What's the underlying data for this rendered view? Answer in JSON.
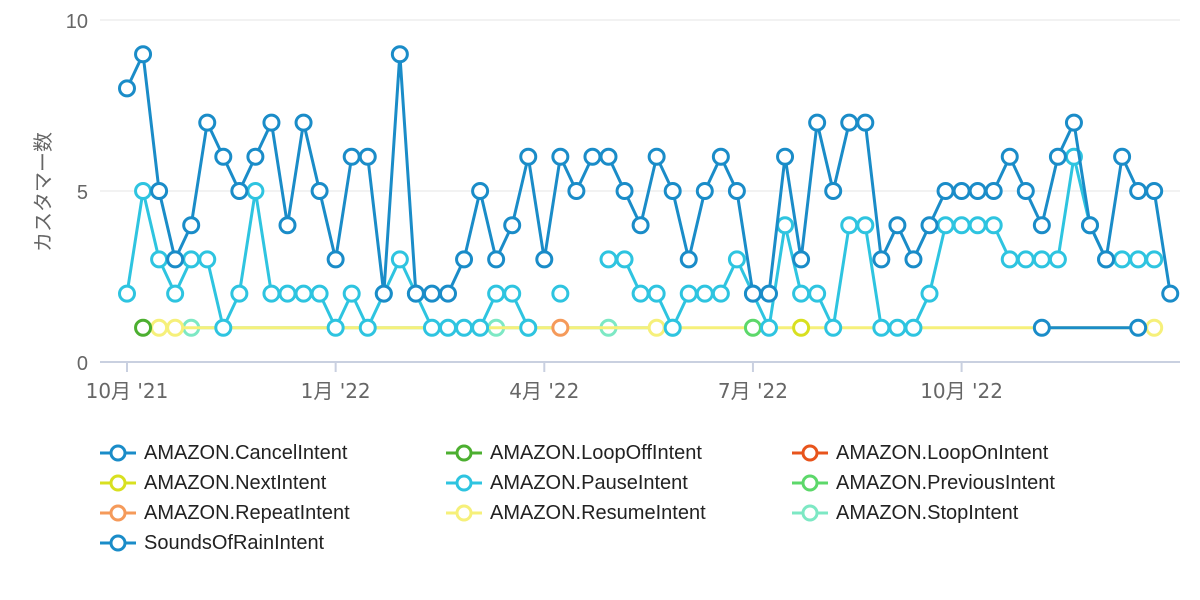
{
  "chart_data": {
    "type": "line",
    "ylabel": "カスタマー数",
    "ylim": [
      0,
      10
    ],
    "yticks": [
      0,
      5,
      10
    ],
    "x_count": 67,
    "x_ticks": [
      {
        "index": 0,
        "label": "10月 '21"
      },
      {
        "index": 13,
        "label": "1月 '22"
      },
      {
        "index": 26,
        "label": "4月 '22"
      },
      {
        "index": 39,
        "label": "7月 '22"
      },
      {
        "index": 52,
        "label": "10月 '22"
      }
    ],
    "grid": true,
    "legend_position": "bottom",
    "series": [
      {
        "name": "AMAZON.CancelIntent",
        "color": "#1a8cc8",
        "points": [
          [
            57,
            1
          ],
          [
            63,
            1
          ]
        ]
      },
      {
        "name": "AMAZON.LoopOffIntent",
        "color": "#4caf30",
        "points": [
          [
            1,
            1
          ]
        ]
      },
      {
        "name": "AMAZON.LoopOnIntent",
        "color": "#e8541c",
        "points": []
      },
      {
        "name": "AMAZON.NextIntent",
        "color": "#d8e020",
        "points": [
          [
            42,
            1
          ]
        ]
      },
      {
        "name": "AMAZON.PauseIntent",
        "color": "#2ec4e0",
        "points": [
          [
            0,
            2
          ],
          [
            1,
            5
          ],
          [
            2,
            3
          ],
          [
            3,
            2
          ],
          [
            4,
            3
          ],
          [
            5,
            3
          ],
          [
            6,
            1
          ],
          [
            7,
            2
          ],
          [
            8,
            5
          ],
          [
            9,
            2
          ],
          [
            10,
            2
          ],
          [
            11,
            2
          ],
          [
            12,
            2
          ],
          [
            13,
            1
          ],
          [
            14,
            2
          ],
          [
            15,
            1
          ],
          [
            16,
            2
          ],
          [
            17,
            3
          ],
          [
            18,
            2
          ],
          [
            19,
            1
          ],
          [
            20,
            1
          ],
          [
            21,
            1
          ],
          [
            22,
            1
          ],
          [
            23,
            2
          ],
          [
            24,
            2
          ],
          [
            25,
            1
          ],
          [
            null,
            null
          ],
          [
            27,
            2
          ],
          [
            null,
            null
          ],
          [
            30,
            3
          ],
          [
            31,
            3
          ],
          [
            32,
            2
          ],
          [
            33,
            2
          ],
          [
            34,
            1
          ],
          [
            35,
            2
          ],
          [
            36,
            2
          ],
          [
            37,
            2
          ],
          [
            38,
            3
          ],
          [
            39,
            2
          ],
          [
            40,
            1
          ],
          [
            41,
            4
          ],
          [
            42,
            2
          ],
          [
            43,
            2
          ],
          [
            44,
            1
          ],
          [
            45,
            4
          ],
          [
            46,
            4
          ],
          [
            47,
            1
          ],
          [
            48,
            1
          ],
          [
            49,
            1
          ],
          [
            50,
            2
          ],
          [
            51,
            4
          ],
          [
            52,
            4
          ],
          [
            53,
            4
          ],
          [
            54,
            4
          ],
          [
            55,
            3
          ],
          [
            56,
            3
          ],
          [
            57,
            3
          ],
          [
            58,
            3
          ],
          [
            59,
            6
          ],
          [
            60,
            4
          ],
          [
            61,
            3
          ],
          [
            62,
            3
          ],
          [
            63,
            3
          ],
          [
            64,
            3
          ]
        ]
      },
      {
        "name": "AMAZON.PreviousIntent",
        "color": "#5cd86a",
        "points": [
          [
            39,
            1
          ]
        ]
      },
      {
        "name": "AMAZON.RepeatIntent",
        "color": "#f59a5a",
        "points": [
          [
            27,
            1
          ]
        ]
      },
      {
        "name": "AMAZON.ResumeIntent",
        "color": "#f6f07a",
        "points": [
          [
            2,
            1
          ],
          [
            3,
            1
          ],
          [
            33,
            1
          ],
          [
            64,
            1
          ]
        ]
      },
      {
        "name": "AMAZON.StopIntent",
        "color": "#7de8c4",
        "points": [
          [
            4,
            1
          ],
          [
            23,
            1
          ],
          [
            25,
            1
          ],
          [
            30,
            1
          ],
          [
            34,
            1
          ]
        ]
      },
      {
        "name": "SoundsOfRainIntent",
        "color": "#1a8cc8",
        "points": [
          [
            0,
            8
          ],
          [
            1,
            9
          ],
          [
            2,
            5
          ],
          [
            3,
            3
          ],
          [
            4,
            4
          ],
          [
            5,
            7
          ],
          [
            6,
            6
          ],
          [
            7,
            5
          ],
          [
            8,
            6
          ],
          [
            9,
            7
          ],
          [
            10,
            4
          ],
          [
            11,
            7
          ],
          [
            12,
            5
          ],
          [
            13,
            3
          ],
          [
            14,
            6
          ],
          [
            15,
            6
          ],
          [
            16,
            2
          ],
          [
            17,
            9
          ],
          [
            18,
            2
          ],
          [
            19,
            2
          ],
          [
            20,
            2
          ],
          [
            21,
            3
          ],
          [
            22,
            5
          ],
          [
            23,
            3
          ],
          [
            24,
            4
          ],
          [
            25,
            6
          ],
          [
            26,
            3
          ],
          [
            27,
            6
          ],
          [
            28,
            5
          ],
          [
            29,
            6
          ],
          [
            30,
            6
          ],
          [
            31,
            5
          ],
          [
            32,
            4
          ],
          [
            33,
            6
          ],
          [
            34,
            5
          ],
          [
            35,
            3
          ],
          [
            36,
            5
          ],
          [
            37,
            6
          ],
          [
            38,
            5
          ],
          [
            39,
            2
          ],
          [
            40,
            2
          ],
          [
            41,
            6
          ],
          [
            42,
            3
          ],
          [
            43,
            7
          ],
          [
            44,
            5
          ],
          [
            45,
            7
          ],
          [
            46,
            7
          ],
          [
            47,
            3
          ],
          [
            48,
            4
          ],
          [
            49,
            3
          ],
          [
            50,
            4
          ],
          [
            51,
            5
          ],
          [
            52,
            5
          ],
          [
            53,
            5
          ],
          [
            54,
            5
          ],
          [
            55,
            6
          ],
          [
            56,
            5
          ],
          [
            57,
            4
          ],
          [
            58,
            6
          ],
          [
            59,
            7
          ],
          [
            60,
            4
          ],
          [
            61,
            3
          ],
          [
            62,
            6
          ],
          [
            63,
            5
          ],
          [
            64,
            5
          ],
          [
            65,
            2
          ]
        ]
      }
    ]
  }
}
